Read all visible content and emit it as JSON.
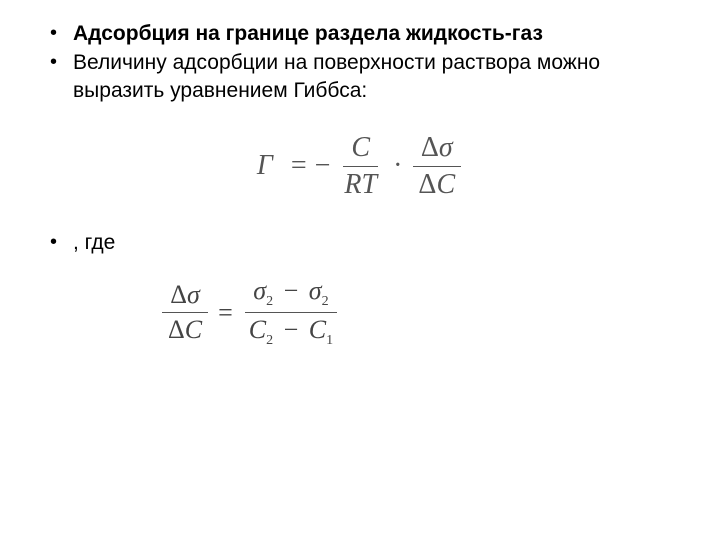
{
  "bullets": {
    "item1": "Адсорбция на границе раздела жидкость-газ",
    "item2": "Величину адсорбции на поверхности раствора можно выразить уравнением Гиббса:",
    "item3": ", где"
  },
  "equation1": {
    "lhs": "Г",
    "frac1_top": "C",
    "frac1_bottom_r": "R",
    "frac1_bottom_t": "T",
    "frac2_top_delta": "Δ",
    "frac2_top_sigma": "σ",
    "frac2_bottom_delta": "Δ",
    "frac2_bottom_c": "C"
  },
  "equation2": {
    "lhs_top_delta": "Δ",
    "lhs_top_sigma": "σ",
    "lhs_bottom_delta": "Δ",
    "lhs_bottom_c": "C",
    "rhs_top_sigma1": "σ",
    "rhs_top_sub1": "2",
    "rhs_top_sigma2": "σ",
    "rhs_top_sub2": "2",
    "rhs_bottom_c1": "C",
    "rhs_bottom_sub1": "2",
    "rhs_bottom_c2": "C",
    "rhs_bottom_sub2": "1"
  },
  "styling": {
    "text_color": "#000000",
    "equation_color": "#555555",
    "background_color": "#ffffff",
    "body_fontsize": 21,
    "equation_fontsize": 28,
    "equation2_fontsize": 26
  }
}
